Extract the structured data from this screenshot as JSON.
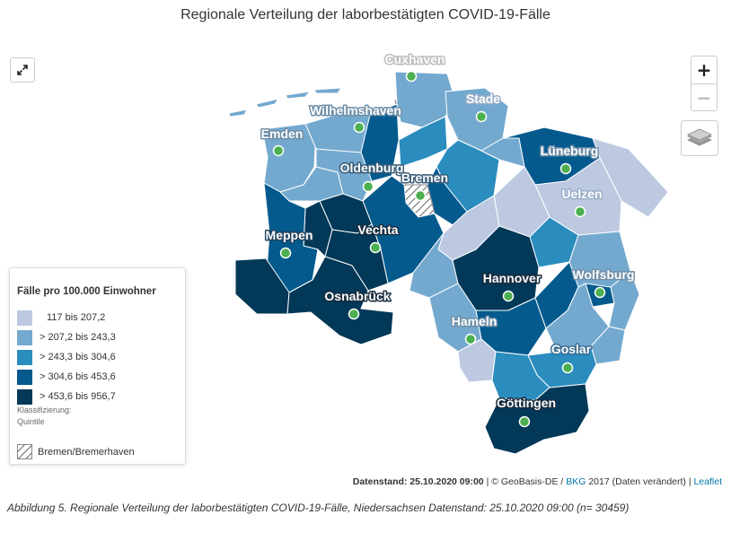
{
  "title": "Regionale Verteilung der laborbestätigten COVID-19-Fälle",
  "map": {
    "colors": {
      "q1": "#bdc9e1",
      "q2": "#74a9cf",
      "q3": "#2b8cbe",
      "q4": "#045a8d",
      "q5": "#023858",
      "marker": "#4caf50"
    },
    "cities": [
      {
        "name": "Cuxhaven"
      },
      {
        "name": "Stade"
      },
      {
        "name": "Wilhelmshaven"
      },
      {
        "name": "Emden"
      },
      {
        "name": "Lüneburg"
      },
      {
        "name": "Oldenburg"
      },
      {
        "name": "Bremen"
      },
      {
        "name": "Uelzen"
      },
      {
        "name": "Meppen"
      },
      {
        "name": "Vechta"
      },
      {
        "name": "Hannover"
      },
      {
        "name": "Wolfsburg"
      },
      {
        "name": "Osnabrück"
      },
      {
        "name": "Hameln"
      },
      {
        "name": "Goslar"
      },
      {
        "name": "Göttingen"
      }
    ]
  },
  "controls": {
    "fullscreen_icon": "expand-arrows-icon",
    "zoom_in": "+",
    "zoom_out": "−",
    "layers_icon": "layers-icon"
  },
  "legend": {
    "title": "Fälle pro 100.000 Einwohner",
    "items": [
      {
        "label": "117 bis 207,2",
        "color": "#bdc9e1"
      },
      {
        "label": "> 207,2 bis 243,3",
        "color": "#74a9cf"
      },
      {
        "label": "> 243,3 bis 304,6",
        "color": "#2b8cbe"
      },
      {
        "label": "> 304,6 bis 453,6",
        "color": "#045a8d"
      },
      {
        "label": "> 453,6 bis 956,7",
        "color": "#023858"
      }
    ],
    "classification_label": "Klassifizierung:",
    "classification_value": "Quintile",
    "hatch_label": "Bremen/Bremerhaven"
  },
  "attribution": {
    "datenstand": "Datenstand: 25.10.2020 09:00",
    "sep1": " | © GeoBasis-DE / ",
    "bkg": "BKG",
    "rest": " 2017 (Daten verändert) | ",
    "leaflet": "Leaflet"
  },
  "caption": "Abbildung 5. Regionale Verteilung der laborbestätigten COVID-19-Fälle, Niedersachsen Datenstand: 25.10.2020 09:00 (n= 30459)"
}
